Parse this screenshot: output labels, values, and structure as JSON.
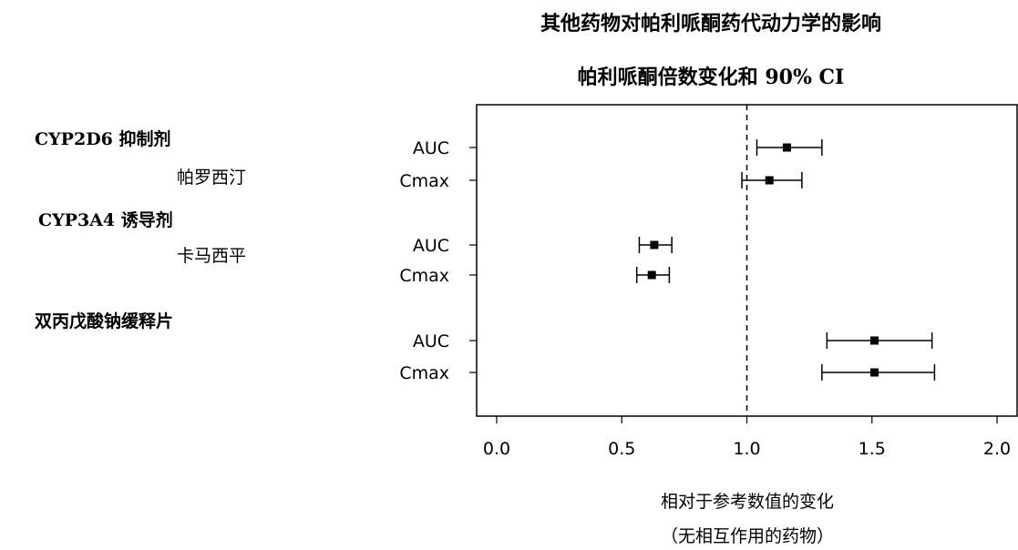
{
  "chart_data": {
    "type": "forest",
    "title": "其他药物对帕利哌酮药代动力学的影响",
    "subtitle": "帕利哌酮倍数变化和 90% CI",
    "xlabel": "相对于参考数值的变化",
    "xlabel_note": "（无相互作用的药物）",
    "xlim": [
      -0.08,
      2.08
    ],
    "xticks": [
      0.0,
      0.5,
      1.0,
      1.5,
      2.0
    ],
    "xtick_labels": [
      "0.0",
      "0.5",
      "1.0",
      "1.5",
      "2.0"
    ],
    "reference_line": 1.0,
    "groups": [
      {
        "group_label": "CYP2D6 抑制剂",
        "drug": "帕罗西汀",
        "rows": [
          {
            "label": "AUC",
            "estimate": 1.16,
            "ci": [
              1.04,
              1.3
            ]
          },
          {
            "label": "Cmax",
            "estimate": 1.09,
            "ci": [
              0.98,
              1.22
            ]
          }
        ]
      },
      {
        "group_label": "CYP3A4 诱导剂",
        "drug": "卡马西平",
        "rows": [
          {
            "label": "AUC",
            "estimate": 0.63,
            "ci": [
              0.57,
              0.7
            ]
          },
          {
            "label": "Cmax",
            "estimate": 0.62,
            "ci": [
              0.56,
              0.69
            ]
          }
        ]
      },
      {
        "group_label": "双丙戊酸钠缓释片",
        "drug": "",
        "rows": [
          {
            "label": "AUC",
            "estimate": 1.51,
            "ci": [
              1.32,
              1.74
            ]
          },
          {
            "label": "Cmax",
            "estimate": 1.51,
            "ci": [
              1.3,
              1.75
            ]
          }
        ]
      }
    ]
  }
}
